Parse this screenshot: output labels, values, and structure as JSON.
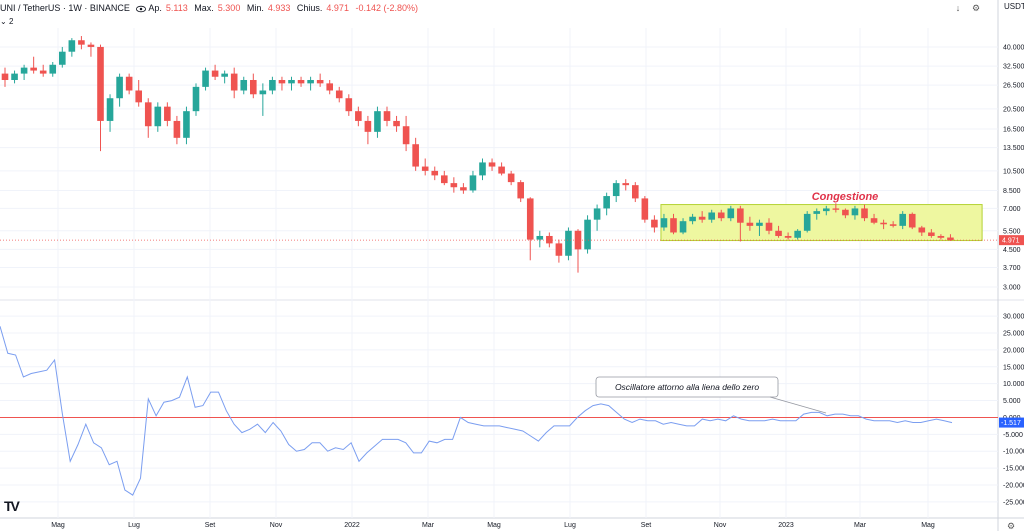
{
  "header": {
    "symbol": "UNI / TetherUS · 1W · BINANCE",
    "open_label": "Ap.",
    "open_value": "5.113",
    "high_label": "Max.",
    "high_value": "5.300",
    "low_label": "Min.",
    "low_value": "4.933",
    "close_label": "Chius.",
    "close_value": "4.971",
    "change": "-0.142 (-2.80%)",
    "indicator_count": "2",
    "currency": "USDT"
  },
  "colors": {
    "up": "#26a69a",
    "down": "#ef5350",
    "oscillator": "#7b9ef0",
    "zero_line": "#ef5350",
    "zone_fill": "#eef7a0",
    "zone_border": "#b5d334",
    "annotation": "#e0334a"
  },
  "icons": [
    "eye-icon",
    "down-arrow-icon",
    "settings-icon",
    "tradingview-logo-icon",
    "chevron-icon"
  ],
  "chart_data": [
    {
      "type": "candlestick",
      "scale": "log",
      "price_ticks": [
        "40.000",
        "32.500",
        "26.500",
        "20.500",
        "16.500",
        "13.500",
        "10.500",
        "8.500",
        "7.000",
        "5.500",
        "4.500",
        "3.700",
        "3.000"
      ],
      "last_price": "4.971",
      "annotation": "Congestione",
      "x_ticks": [
        "Mag",
        "Lug",
        "Set",
        "Nov",
        "2022",
        "Mar",
        "Mag",
        "Lug",
        "Set",
        "Nov",
        "2023",
        "Mar",
        "Mag"
      ],
      "candles": [
        [
          30,
          32,
          26,
          28
        ],
        [
          28,
          31,
          27,
          30
        ],
        [
          30,
          33,
          28,
          32
        ],
        [
          32,
          36,
          30,
          31
        ],
        [
          31,
          33,
          29,
          30
        ],
        [
          30,
          34,
          29,
          33
        ],
        [
          33,
          40,
          32,
          38
        ],
        [
          38,
          44,
          36,
          43
        ],
        [
          43,
          45,
          39,
          41
        ],
        [
          41,
          42,
          36,
          40
        ],
        [
          40,
          41,
          13,
          18
        ],
        [
          18,
          24,
          16,
          23
        ],
        [
          23,
          30,
          21,
          29
        ],
        [
          29,
          30,
          24,
          25
        ],
        [
          25,
          28,
          21,
          22
        ],
        [
          22,
          23,
          15,
          17
        ],
        [
          17,
          22,
          16,
          21
        ],
        [
          21,
          22,
          17,
          18
        ],
        [
          18,
          19,
          14,
          15
        ],
        [
          15,
          21,
          14,
          20
        ],
        [
          20,
          27,
          19,
          26
        ],
        [
          26,
          32,
          25,
          31
        ],
        [
          31,
          33,
          28,
          29
        ],
        [
          29,
          31,
          27,
          30
        ],
        [
          30,
          32,
          23,
          25
        ],
        [
          25,
          29,
          24,
          28
        ],
        [
          28,
          30,
          23,
          24
        ],
        [
          24,
          27,
          19,
          25
        ],
        [
          25,
          29,
          24,
          28
        ],
        [
          28,
          29,
          25,
          27
        ],
        [
          27,
          29,
          25,
          28
        ],
        [
          28,
          29,
          26,
          27
        ],
        [
          27,
          29,
          25,
          28
        ],
        [
          28,
          30,
          26,
          27
        ],
        [
          27,
          28,
          24,
          25
        ],
        [
          25,
          26,
          22,
          23
        ],
        [
          23,
          24,
          19,
          20
        ],
        [
          20,
          21,
          17,
          18
        ],
        [
          18,
          19,
          14,
          16
        ],
        [
          16,
          21,
          15,
          20
        ],
        [
          20,
          21,
          17,
          18
        ],
        [
          18,
          19,
          16,
          17
        ],
        [
          17,
          19,
          13,
          14
        ],
        [
          14,
          15,
          10.5,
          11
        ],
        [
          11,
          12,
          10,
          10.5
        ],
        [
          10.5,
          11,
          9.5,
          10
        ],
        [
          10,
          10.5,
          9,
          9.2
        ],
        [
          9.2,
          9.8,
          8.3,
          8.8
        ],
        [
          8.8,
          9.2,
          8.2,
          8.5
        ],
        [
          8.5,
          10.5,
          8.3,
          10
        ],
        [
          10,
          12,
          9.5,
          11.5
        ],
        [
          11.5,
          12,
          10.5,
          11
        ],
        [
          11,
          11.5,
          10,
          10.2
        ],
        [
          10.2,
          10.5,
          9,
          9.3
        ],
        [
          9.3,
          9.5,
          7.5,
          7.8
        ],
        [
          7.8,
          7.9,
          4,
          5
        ],
        [
          5,
          5.5,
          4.6,
          5.2
        ],
        [
          5.2,
          5.4,
          4.6,
          4.8
        ],
        [
          4.8,
          5,
          3.9,
          4.2
        ],
        [
          4.2,
          5.7,
          4,
          5.5
        ],
        [
          5.5,
          5.6,
          3.5,
          4.5
        ],
        [
          4.5,
          6.5,
          4.3,
          6.2
        ],
        [
          6.2,
          7.3,
          5.5,
          7
        ],
        [
          7,
          8.3,
          6.5,
          8
        ],
        [
          8,
          9.5,
          7.5,
          9.2
        ],
        [
          9.2,
          9.6,
          8.5,
          9
        ],
        [
          9,
          9.3,
          7.5,
          7.8
        ],
        [
          7.8,
          8,
          6,
          6.2
        ],
        [
          6.2,
          6.5,
          5.4,
          5.7
        ],
        [
          5.7,
          6.6,
          5.5,
          6.3
        ],
        [
          6.3,
          6.6,
          5.3,
          5.4
        ],
        [
          5.4,
          6.3,
          5.3,
          6.1
        ],
        [
          6.1,
          6.6,
          5.9,
          6.4
        ],
        [
          6.4,
          6.8,
          6,
          6.2
        ],
        [
          6.2,
          6.9,
          6,
          6.7
        ],
        [
          6.7,
          6.9,
          6.1,
          6.3
        ],
        [
          6.3,
          7.2,
          6.1,
          7
        ],
        [
          7,
          7.2,
          4.9,
          6
        ],
        [
          6,
          6.4,
          5.5,
          5.8
        ],
        [
          5.8,
          6.2,
          5.2,
          6
        ],
        [
          6,
          6.3,
          5.3,
          5.5
        ],
        [
          5.5,
          5.8,
          5.1,
          5.2
        ],
        [
          5.2,
          5.4,
          5,
          5.1
        ],
        [
          5.1,
          5.6,
          5,
          5.5
        ],
        [
          5.5,
          6.8,
          5.4,
          6.6
        ],
        [
          6.6,
          7,
          6.2,
          6.8
        ],
        [
          6.8,
          7.2,
          6.5,
          7
        ],
        [
          7,
          7.4,
          6.7,
          6.9
        ],
        [
          6.9,
          7,
          6.3,
          6.5
        ],
        [
          6.5,
          7.2,
          6.2,
          7
        ],
        [
          7,
          7.3,
          6.1,
          6.3
        ],
        [
          6.3,
          6.6,
          5.9,
          6
        ],
        [
          6,
          6.2,
          5.6,
          5.9
        ],
        [
          5.9,
          6.1,
          5.7,
          5.8
        ],
        [
          5.8,
          6.8,
          5.6,
          6.6
        ],
        [
          6.6,
          6.7,
          5.6,
          5.7
        ],
        [
          5.7,
          5.8,
          5.2,
          5.4
        ],
        [
          5.4,
          5.6,
          5.1,
          5.2
        ],
        [
          5.2,
          5.3,
          5,
          5.1
        ],
        [
          5.113,
          5.3,
          4.933,
          4.971
        ]
      ]
    },
    {
      "type": "line",
      "series_label": "",
      "y_ticks": [
        "30.000",
        "25.000",
        "20.000",
        "15.000",
        "10.000",
        "5.000",
        "0.000",
        "-5.000",
        "-10.000",
        "-15.000",
        "-20.000",
        "-25.000"
      ],
      "last_value": "-1.517",
      "annotation": "Oscillatore attorno alla liena dello zero",
      "values": [
        27,
        19,
        18.5,
        12,
        13,
        13.5,
        14,
        17,
        1,
        -13,
        -8,
        -2,
        -7.5,
        -9,
        -14,
        -13,
        -21.5,
        -23,
        -18,
        5.5,
        0.5,
        4.5,
        5,
        6,
        12,
        3,
        3.5,
        7.5,
        7.5,
        2,
        -2,
        -4.5,
        -3.5,
        -2,
        -4.5,
        -1.5,
        -4,
        -8,
        -10,
        -9.5,
        -7.5,
        -7.5,
        -10,
        -9,
        -9.5,
        -7.5,
        -13,
        -10.5,
        -8.5,
        -6.5,
        -6.5,
        -6.5,
        -7.5,
        -10.5,
        -10.5,
        -7,
        -7.5,
        -6.5,
        -6.5,
        0,
        -1.5,
        -2,
        -2.5,
        -2.5,
        -2.5,
        -3,
        -3.5,
        -4,
        -5.5,
        -7,
        -4.5,
        -2.5,
        -2.5,
        -2.5,
        0,
        2,
        3.5,
        4,
        3.5,
        1.5,
        -0.5,
        -1.5,
        -0.5,
        -1,
        -1,
        -2,
        -1.5,
        -2,
        -2.5,
        -2.5,
        -0.5,
        -1,
        -0.5,
        -1,
        0.5,
        -0.5,
        -1,
        -1,
        -1,
        -0.5,
        -1,
        -1,
        -1,
        1,
        1.5,
        1.5,
        0.5,
        1,
        1,
        0.5,
        0.5,
        -0.5,
        -1,
        -1,
        -1,
        -1.5,
        -1,
        -1.5,
        -1.5,
        -1,
        -0.5,
        -1,
        -1.517
      ]
    }
  ]
}
